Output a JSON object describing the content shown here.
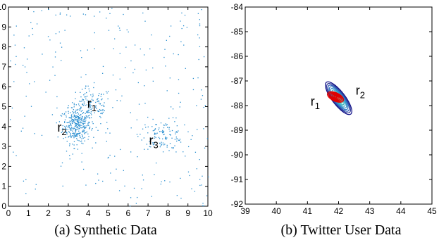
{
  "chart_data": [
    {
      "type": "scatter",
      "caption": "(a) Synthetic Data",
      "xlim": [
        0,
        10
      ],
      "ylim": [
        0,
        10
      ],
      "xticks": [
        0,
        1,
        2,
        3,
        4,
        5,
        6,
        7,
        8,
        9,
        10
      ],
      "yticks": [
        0,
        1,
        2,
        3,
        4,
        5,
        6,
        7,
        8,
        9,
        10
      ],
      "point_color": "#2a8fd0",
      "clusters": [
        {
          "center": [
            3.4,
            4.1
          ],
          "spread": [
            0.35,
            0.45
          ],
          "count": 320
        },
        {
          "center": [
            4.1,
            5.0
          ],
          "spread": [
            0.55,
            0.5
          ],
          "count": 140
        },
        {
          "center": [
            7.7,
            3.6
          ],
          "spread": [
            0.55,
            0.35
          ],
          "count": 110
        },
        {
          "center": [
            5.0,
            5.0
          ],
          "spread": [
            3.0,
            3.0
          ],
          "count": 260
        }
      ],
      "annotations": [
        {
          "label": "r",
          "subscript": "1",
          "x": 3.95,
          "y": 4.95
        },
        {
          "label": "r",
          "subscript": "2",
          "x": 2.45,
          "y": 3.75
        },
        {
          "label": "r",
          "subscript": "3",
          "x": 7.05,
          "y": 3.1
        }
      ]
    },
    {
      "type": "contour",
      "caption": "(b) Twitter User Data",
      "xlim": [
        39,
        45
      ],
      "ylim": [
        -92,
        -84
      ],
      "xticks": [
        39,
        40,
        41,
        42,
        43,
        44,
        45
      ],
      "yticks": [
        -92,
        -91,
        -90,
        -89,
        -88,
        -87,
        -86,
        -85,
        -84
      ],
      "series": [
        {
          "center": [
            42.0,
            -87.7
          ],
          "angle_deg": -60,
          "semi_axes": [
            4.2,
            1.25
          ],
          "levels": 10,
          "colors": [
            "#0a0a85",
            "#2e3696",
            "#1f52b4",
            "#2f78c2",
            "#2f8fc9",
            "#38a8c6",
            "#3fb8c0",
            "#4ac2b7",
            "#6ac7a3",
            "#8ecf8b"
          ]
        },
        {
          "center": [
            41.9,
            -87.65
          ],
          "angle_deg": -35,
          "semi_axes": [
            1.65,
            0.9
          ],
          "levels": 7,
          "colors": [
            "#e00000"
          ]
        }
      ],
      "annotations": [
        {
          "label": "r",
          "subscript": "1",
          "x": 41.1,
          "y": -88.0
        },
        {
          "label": "r",
          "subscript": "2",
          "x": 42.55,
          "y": -87.55
        }
      ]
    }
  ]
}
